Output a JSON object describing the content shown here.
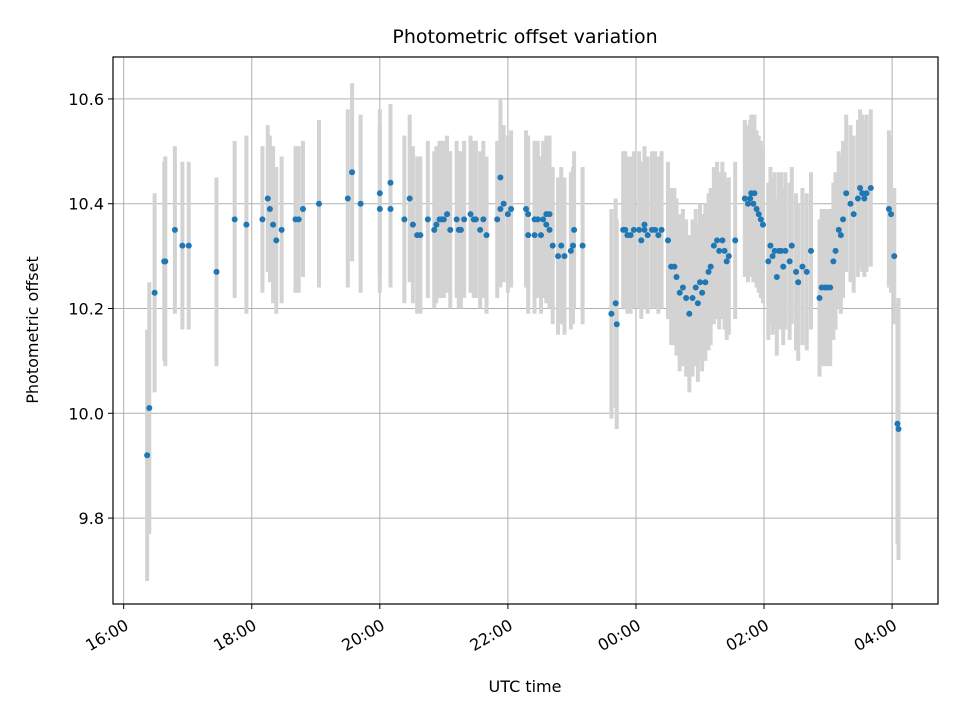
{
  "chart_data": {
    "type": "scatter",
    "title": "Photometric offset variation",
    "xlabel": "UTC time",
    "ylabel": "Photometric offset",
    "x_tick_labels": [
      "16:00",
      "18:00",
      "20:00",
      "22:00",
      "00:00",
      "02:00",
      "04:00"
    ],
    "y_tick_labels": [
      "9.8",
      "10.0",
      "10.2",
      "10.4",
      "10.6"
    ],
    "y_ticks": [
      9.8,
      10.0,
      10.2,
      10.4,
      10.6
    ],
    "xlim": [
      "15:50",
      "04:43"
    ],
    "ylim": [
      9.636,
      10.68
    ],
    "grid": true,
    "colors": {
      "points": "#1f77b4",
      "errorbars": "#d3d3d3",
      "grid": "#b0b0b0"
    },
    "series": [
      {
        "values": [
          {
            "x": "16:22",
            "y": 9.92,
            "err": 0.24
          },
          {
            "x": "16:24",
            "y": 10.01,
            "err": 0.24
          },
          {
            "x": "16:29",
            "y": 10.23,
            "err": 0.19
          },
          {
            "x": "16:38",
            "y": 10.29,
            "err": 0.19
          },
          {
            "x": "16:39",
            "y": 10.29,
            "err": 0.2
          },
          {
            "x": "16:48",
            "y": 10.35,
            "err": 0.16
          },
          {
            "x": "16:55",
            "y": 10.32,
            "err": 0.16
          },
          {
            "x": "17:01",
            "y": 10.32,
            "err": 0.16
          },
          {
            "x": "17:27",
            "y": 10.27,
            "err": 0.18
          },
          {
            "x": "17:44",
            "y": 10.37,
            "err": 0.15
          },
          {
            "x": "17:55",
            "y": 10.36,
            "err": 0.17
          },
          {
            "x": "18:10",
            "y": 10.37,
            "err": 0.14
          },
          {
            "x": "18:15",
            "y": 10.41,
            "err": 0.14
          },
          {
            "x": "18:17",
            "y": 10.39,
            "err": 0.14
          },
          {
            "x": "18:20",
            "y": 10.36,
            "err": 0.15
          },
          {
            "x": "18:23",
            "y": 10.33,
            "err": 0.14
          },
          {
            "x": "18:28",
            "y": 10.35,
            "err": 0.14
          },
          {
            "x": "18:41",
            "y": 10.37,
            "err": 0.14
          },
          {
            "x": "18:44",
            "y": 10.37,
            "err": 0.14
          },
          {
            "x": "18:48",
            "y": 10.39,
            "err": 0.13
          },
          {
            "x": "19:03",
            "y": 10.4,
            "err": 0.16
          },
          {
            "x": "19:30",
            "y": 10.41,
            "err": 0.17
          },
          {
            "x": "19:34",
            "y": 10.46,
            "err": 0.17
          },
          {
            "x": "19:42",
            "y": 10.4,
            "err": 0.17
          },
          {
            "x": "20:00",
            "y": 10.42,
            "err": 0.16
          },
          {
            "x": "20:00",
            "y": 10.39,
            "err": 0.16
          },
          {
            "x": "20:10",
            "y": 10.44,
            "err": 0.15
          },
          {
            "x": "20:10",
            "y": 10.39,
            "err": 0.15
          },
          {
            "x": "20:23",
            "y": 10.37,
            "err": 0.16
          },
          {
            "x": "20:28",
            "y": 10.41,
            "err": 0.16
          },
          {
            "x": "20:31",
            "y": 10.36,
            "err": 0.15
          },
          {
            "x": "20:35",
            "y": 10.34,
            "err": 0.15
          },
          {
            "x": "20:38",
            "y": 10.34,
            "err": 0.15
          },
          {
            "x": "20:45",
            "y": 10.37,
            "err": 0.15
          },
          {
            "x": "20:51",
            "y": 10.35,
            "err": 0.15
          },
          {
            "x": "20:53",
            "y": 10.36,
            "err": 0.15
          },
          {
            "x": "20:56",
            "y": 10.37,
            "err": 0.15
          },
          {
            "x": "20:58",
            "y": 10.37,
            "err": 0.15
          },
          {
            "x": "21:00",
            "y": 10.37,
            "err": 0.15
          },
          {
            "x": "21:03",
            "y": 10.38,
            "err": 0.15
          },
          {
            "x": "21:06",
            "y": 10.35,
            "err": 0.15
          },
          {
            "x": "21:12",
            "y": 10.37,
            "err": 0.15
          },
          {
            "x": "21:14",
            "y": 10.35,
            "err": 0.15
          },
          {
            "x": "21:16",
            "y": 10.35,
            "err": 0.15
          },
          {
            "x": "21:19",
            "y": 10.37,
            "err": 0.15
          },
          {
            "x": "21:25",
            "y": 10.38,
            "err": 0.15
          },
          {
            "x": "21:28",
            "y": 10.37,
            "err": 0.15
          },
          {
            "x": "21:30",
            "y": 10.37,
            "err": 0.15
          },
          {
            "x": "21:34",
            "y": 10.35,
            "err": 0.15
          },
          {
            "x": "21:37",
            "y": 10.37,
            "err": 0.15
          },
          {
            "x": "21:40",
            "y": 10.34,
            "err": 0.15
          },
          {
            "x": "21:50",
            "y": 10.37,
            "err": 0.15
          },
          {
            "x": "21:53",
            "y": 10.45,
            "err": 0.15
          },
          {
            "x": "21:53",
            "y": 10.39,
            "err": 0.15
          },
          {
            "x": "21:56",
            "y": 10.4,
            "err": 0.15
          },
          {
            "x": "22:00",
            "y": 10.38,
            "err": 0.15
          },
          {
            "x": "22:03",
            "y": 10.39,
            "err": 0.15
          },
          {
            "x": "22:17",
            "y": 10.39,
            "err": 0.15
          },
          {
            "x": "22:19",
            "y": 10.38,
            "err": 0.15
          },
          {
            "x": "22:19",
            "y": 10.34,
            "err": 0.15
          },
          {
            "x": "22:25",
            "y": 10.34,
            "err": 0.15
          },
          {
            "x": "22:25",
            "y": 10.37,
            "err": 0.15
          },
          {
            "x": "22:28",
            "y": 10.37,
            "err": 0.15
          },
          {
            "x": "22:31",
            "y": 10.34,
            "err": 0.15
          },
          {
            "x": "22:33",
            "y": 10.37,
            "err": 0.15
          },
          {
            "x": "22:36",
            "y": 10.38,
            "err": 0.15
          },
          {
            "x": "22:36",
            "y": 10.36,
            "err": 0.15
          },
          {
            "x": "22:39",
            "y": 10.35,
            "err": 0.15
          },
          {
            "x": "22:39",
            "y": 10.38,
            "err": 0.15
          },
          {
            "x": "22:42",
            "y": 10.32,
            "err": 0.15
          },
          {
            "x": "22:47",
            "y": 10.3,
            "err": 0.15
          },
          {
            "x": "22:50",
            "y": 10.32,
            "err": 0.15
          },
          {
            "x": "22:53",
            "y": 10.3,
            "err": 0.15
          },
          {
            "x": "22:59",
            "y": 10.31,
            "err": 0.15
          },
          {
            "x": "23:01",
            "y": 10.32,
            "err": 0.15
          },
          {
            "x": "23:02",
            "y": 10.35,
            "err": 0.15
          },
          {
            "x": "23:10",
            "y": 10.32,
            "err": 0.15
          },
          {
            "x": "23:37",
            "y": 10.19,
            "err": 0.2
          },
          {
            "x": "23:41",
            "y": 10.21,
            "err": 0.2
          },
          {
            "x": "23:42",
            "y": 10.17,
            "err": 0.2
          },
          {
            "x": "23:48",
            "y": 10.35,
            "err": 0.15
          },
          {
            "x": "23:50",
            "y": 10.35,
            "err": 0.15
          },
          {
            "x": "23:52",
            "y": 10.34,
            "err": 0.15
          },
          {
            "x": "23:55",
            "y": 10.34,
            "err": 0.15
          },
          {
            "x": "23:58",
            "y": 10.35,
            "err": 0.15
          },
          {
            "x": "00:03",
            "y": 10.35,
            "err": 0.15
          },
          {
            "x": "00:05",
            "y": 10.33,
            "err": 0.15
          },
          {
            "x": "00:08",
            "y": 10.35,
            "err": 0.15
          },
          {
            "x": "00:08",
            "y": 10.36,
            "err": 0.15
          },
          {
            "x": "00:11",
            "y": 10.34,
            "err": 0.15
          },
          {
            "x": "00:15",
            "y": 10.35,
            "err": 0.15
          },
          {
            "x": "00:18",
            "y": 10.35,
            "err": 0.15
          },
          {
            "x": "00:21",
            "y": 10.34,
            "err": 0.15
          },
          {
            "x": "00:24",
            "y": 10.35,
            "err": 0.15
          },
          {
            "x": "00:30",
            "y": 10.33,
            "err": 0.15
          },
          {
            "x": "00:33",
            "y": 10.28,
            "err": 0.15
          },
          {
            "x": "00:36",
            "y": 10.28,
            "err": 0.15
          },
          {
            "x": "00:38",
            "y": 10.26,
            "err": 0.15
          },
          {
            "x": "00:41",
            "y": 10.23,
            "err": 0.15
          },
          {
            "x": "00:44",
            "y": 10.24,
            "err": 0.15
          },
          {
            "x": "00:47",
            "y": 10.22,
            "err": 0.15
          },
          {
            "x": "00:50",
            "y": 10.19,
            "err": 0.15
          },
          {
            "x": "00:53",
            "y": 10.22,
            "err": 0.15
          },
          {
            "x": "00:56",
            "y": 10.24,
            "err": 0.15
          },
          {
            "x": "00:58",
            "y": 10.21,
            "err": 0.15
          },
          {
            "x": "01:00",
            "y": 10.25,
            "err": 0.15
          },
          {
            "x": "01:02",
            "y": 10.23,
            "err": 0.15
          },
          {
            "x": "01:05",
            "y": 10.25,
            "err": 0.15
          },
          {
            "x": "01:08",
            "y": 10.27,
            "err": 0.15
          },
          {
            "x": "01:10",
            "y": 10.28,
            "err": 0.15
          },
          {
            "x": "01:13",
            "y": 10.32,
            "err": 0.15
          },
          {
            "x": "01:16",
            "y": 10.33,
            "err": 0.15
          },
          {
            "x": "01:18",
            "y": 10.31,
            "err": 0.15
          },
          {
            "x": "01:21",
            "y": 10.33,
            "err": 0.15
          },
          {
            "x": "01:23",
            "y": 10.31,
            "err": 0.15
          },
          {
            "x": "01:25",
            "y": 10.29,
            "err": 0.15
          },
          {
            "x": "01:27",
            "y": 10.3,
            "err": 0.15
          },
          {
            "x": "01:33",
            "y": 10.33,
            "err": 0.15
          },
          {
            "x": "01:42",
            "y": 10.41,
            "err": 0.15
          },
          {
            "x": "01:45",
            "y": 10.4,
            "err": 0.15
          },
          {
            "x": "01:47",
            "y": 10.41,
            "err": 0.15
          },
          {
            "x": "01:48",
            "y": 10.42,
            "err": 0.15
          },
          {
            "x": "01:50",
            "y": 10.4,
            "err": 0.15
          },
          {
            "x": "01:51",
            "y": 10.42,
            "err": 0.15
          },
          {
            "x": "01:53",
            "y": 10.39,
            "err": 0.15
          },
          {
            "x": "01:55",
            "y": 10.38,
            "err": 0.15
          },
          {
            "x": "01:57",
            "y": 10.37,
            "err": 0.15
          },
          {
            "x": "01:59",
            "y": 10.36,
            "err": 0.15
          },
          {
            "x": "02:04",
            "y": 10.29,
            "err": 0.15
          },
          {
            "x": "02:06",
            "y": 10.32,
            "err": 0.15
          },
          {
            "x": "02:08",
            "y": 10.3,
            "err": 0.15
          },
          {
            "x": "02:10",
            "y": 10.31,
            "err": 0.15
          },
          {
            "x": "02:12",
            "y": 10.26,
            "err": 0.15
          },
          {
            "x": "02:14",
            "y": 10.31,
            "err": 0.15
          },
          {
            "x": "02:16",
            "y": 10.31,
            "err": 0.15
          },
          {
            "x": "02:18",
            "y": 10.28,
            "err": 0.15
          },
          {
            "x": "02:20",
            "y": 10.31,
            "err": 0.15
          },
          {
            "x": "02:24",
            "y": 10.29,
            "err": 0.15
          },
          {
            "x": "02:26",
            "y": 10.32,
            "err": 0.15
          },
          {
            "x": "02:30",
            "y": 10.27,
            "err": 0.15
          },
          {
            "x": "02:32",
            "y": 10.25,
            "err": 0.15
          },
          {
            "x": "02:36",
            "y": 10.28,
            "err": 0.15
          },
          {
            "x": "02:40",
            "y": 10.27,
            "err": 0.15
          },
          {
            "x": "02:44",
            "y": 10.31,
            "err": 0.15
          },
          {
            "x": "02:52",
            "y": 10.22,
            "err": 0.15
          },
          {
            "x": "02:54",
            "y": 10.24,
            "err": 0.15
          },
          {
            "x": "02:57",
            "y": 10.24,
            "err": 0.15
          },
          {
            "x": "02:59",
            "y": 10.24,
            "err": 0.15
          },
          {
            "x": "03:02",
            "y": 10.24,
            "err": 0.15
          },
          {
            "x": "03:05",
            "y": 10.29,
            "err": 0.15
          },
          {
            "x": "03:07",
            "y": 10.31,
            "err": 0.15
          },
          {
            "x": "03:10",
            "y": 10.35,
            "err": 0.15
          },
          {
            "x": "03:12",
            "y": 10.34,
            "err": 0.15
          },
          {
            "x": "03:14",
            "y": 10.37,
            "err": 0.15
          },
          {
            "x": "03:17",
            "y": 10.42,
            "err": 0.15
          },
          {
            "x": "03:21",
            "y": 10.4,
            "err": 0.15
          },
          {
            "x": "03:24",
            "y": 10.38,
            "err": 0.15
          },
          {
            "x": "03:28",
            "y": 10.41,
            "err": 0.15
          },
          {
            "x": "03:30",
            "y": 10.43,
            "err": 0.15
          },
          {
            "x": "03:32",
            "y": 10.42,
            "err": 0.15
          },
          {
            "x": "03:34",
            "y": 10.41,
            "err": 0.15
          },
          {
            "x": "03:36",
            "y": 10.42,
            "err": 0.15
          },
          {
            "x": "03:40",
            "y": 10.43,
            "err": 0.15
          },
          {
            "x": "03:57",
            "y": 10.39,
            "err": 0.15
          },
          {
            "x": "03:59",
            "y": 10.38,
            "err": 0.15
          },
          {
            "x": "04:02",
            "y": 10.3,
            "err": 0.13
          },
          {
            "x": "04:05",
            "y": 9.98,
            "err": 0.23
          },
          {
            "x": "04:06",
            "y": 9.97,
            "err": 0.25
          }
        ]
      }
    ]
  }
}
